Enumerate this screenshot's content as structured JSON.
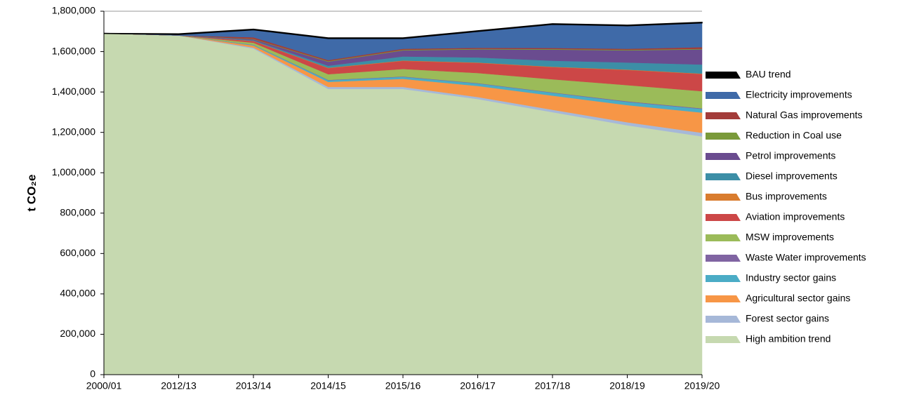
{
  "chart_data": {
    "type": "stacked_area",
    "y_label": "t CO₂e",
    "categories": [
      "2000/01",
      "2012/13",
      "2013/14",
      "2014/15",
      "2015/16",
      "2016/17",
      "2017/18",
      "2018/19",
      "2019/20"
    ],
    "ylim": [
      0,
      1800000
    ],
    "yticks": [
      0,
      {
        "value": 200000,
        "label": "200,000"
      },
      {
        "value": 400000,
        "label": "400,000"
      },
      {
        "value": 600000,
        "label": "600,000"
      },
      {
        "value": 800000,
        "label": "800,000"
      },
      {
        "value": 1000000,
        "label": "1,000,000"
      },
      {
        "value": 1200000,
        "label": "1,200,000"
      },
      {
        "value": 1400000,
        "label": "1,400,000"
      },
      {
        "value": 1600000,
        "label": "1,600,000"
      },
      {
        "value": 1800000,
        "label": "1,800,000"
      }
    ],
    "legend": "right",
    "series": [
      {
        "name": "BAU trend",
        "color": "#000000",
        "values": [
          0,
          3000,
          3000,
          3000,
          3000,
          3000,
          3000,
          3000,
          3000
        ]
      },
      {
        "name": "Electricity improvements",
        "color": "#3f6aa8",
        "values": [
          0,
          5000,
          37000,
          107000,
          51000,
          81000,
          117000,
          114000,
          120000
        ]
      },
      {
        "name": "Natural Gas improvements",
        "color": "#a33c3a",
        "values": [
          0,
          0,
          8000,
          5000,
          5000,
          5000,
          5000,
          5000,
          8000
        ]
      },
      {
        "name": "Reduction in Coal use",
        "color": "#7a9a3a",
        "values": [
          0,
          0,
          2000,
          3000,
          3000,
          3000,
          3000,
          3000,
          3000
        ]
      },
      {
        "name": "Petrol improvements",
        "color": "#6a4c8f",
        "values": [
          0,
          0,
          5000,
          20000,
          30000,
          40000,
          55000,
          60000,
          75000
        ]
      },
      {
        "name": "Diesel improvements",
        "color": "#3c8ea6",
        "values": [
          0,
          0,
          3000,
          10000,
          20000,
          25000,
          30000,
          35000,
          45000
        ]
      },
      {
        "name": "Bus improvements",
        "color": "#d97c2e",
        "values": [
          0,
          0,
          1000,
          2000,
          2000,
          2000,
          2000,
          2000,
          2000
        ]
      },
      {
        "name": "Aviation improvements",
        "color": "#cc4747",
        "values": [
          0,
          0,
          8000,
          30000,
          40000,
          50000,
          60000,
          75000,
          85000
        ]
      },
      {
        "name": "MSW improvements",
        "color": "#9bbb59",
        "values": [
          0,
          0,
          10000,
          28000,
          37000,
          50000,
          65000,
          80000,
          85000
        ]
      },
      {
        "name": "Waste Water improvements",
        "color": "#8064a2",
        "values": [
          0,
          0,
          1000,
          2000,
          2000,
          2000,
          2000,
          3000,
          3000
        ]
      },
      {
        "name": "Industry sector gains",
        "color": "#4bacc6",
        "values": [
          0,
          0,
          3000,
          8000,
          10000,
          12000,
          14000,
          16000,
          18000
        ]
      },
      {
        "name": "Agricultural sector gains",
        "color": "#f79646",
        "values": [
          0,
          0,
          10000,
          25000,
          40000,
          55000,
          70000,
          85000,
          100000
        ]
      },
      {
        "name": "Forest sector gains",
        "color": "#a6b8d8",
        "values": [
          0,
          0,
          5000,
          10000,
          10000,
          10000,
          12000,
          15000,
          18000
        ]
      },
      {
        "name": "High ambition trend",
        "color": "#c6d9b0",
        "values": [
          1690000,
          1680000,
          1615000,
          1415000,
          1415000,
          1365000,
          1300000,
          1235000,
          1180000
        ]
      }
    ]
  }
}
